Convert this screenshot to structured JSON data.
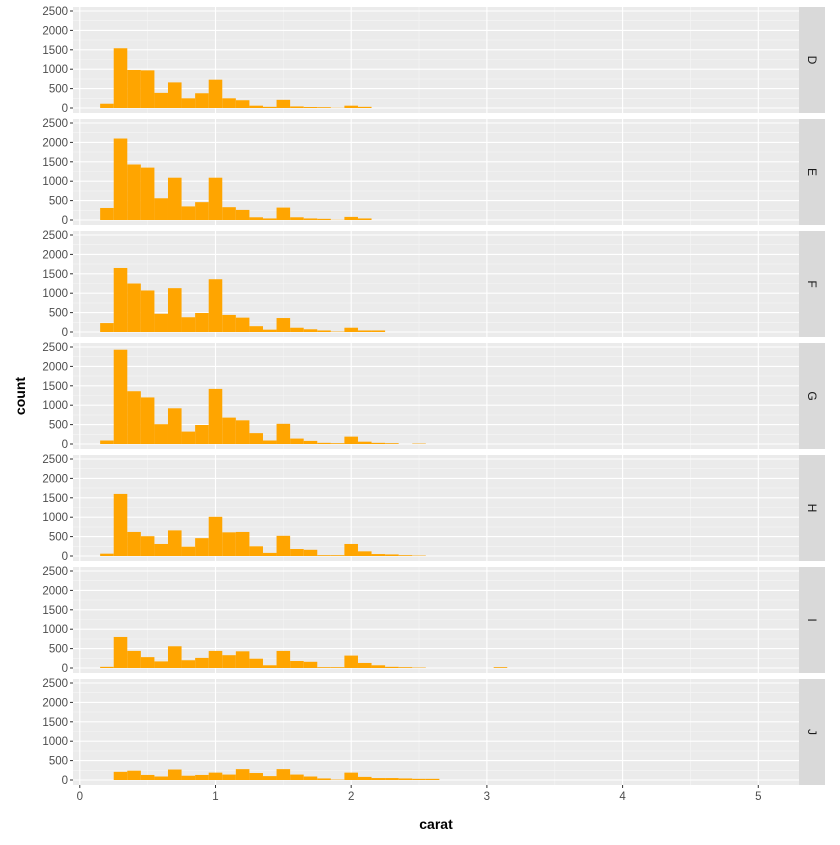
{
  "chart_data": {
    "type": "bar",
    "subtype": "faceted-histogram",
    "xlabel": "carat",
    "ylabel": "count",
    "xlim": [
      -0.05,
      5.3
    ],
    "ylim": [
      0,
      2500
    ],
    "x_ticks": [
      0,
      1,
      2,
      3,
      4,
      5
    ],
    "x_tick_labels": [
      "0",
      "1",
      "2",
      "3",
      "4",
      "5"
    ],
    "y_ticks": [
      0,
      500,
      1000,
      1500,
      2000,
      2500
    ],
    "y_tick_labels": [
      "0",
      "500",
      "1000",
      "1500",
      "2000",
      "2500"
    ],
    "bin_starts": [
      0.15,
      0.25,
      0.35,
      0.45,
      0.55,
      0.65,
      0.75,
      0.85,
      0.95,
      1.05,
      1.15,
      1.25,
      1.35,
      1.45,
      1.55,
      1.65,
      1.75,
      1.85,
      1.95,
      2.05,
      2.15,
      2.25,
      2.35,
      2.45,
      2.55,
      2.65,
      2.75,
      2.85,
      2.95,
      3.05
    ],
    "bin_width": 0.1,
    "bar_color": "#FFA500",
    "panel_bg": "#EBEBEB",
    "strip_bg": "#D9D9D9",
    "grid": true,
    "facets": [
      {
        "label": "D",
        "values": [
          110,
          1540,
          980,
          970,
          390,
          660,
          250,
          380,
          730,
          250,
          200,
          60,
          30,
          210,
          40,
          25,
          20,
          5,
          60,
          30,
          0,
          0,
          0,
          0,
          0,
          0,
          0,
          0,
          0,
          0
        ]
      },
      {
        "label": "E",
        "values": [
          310,
          2100,
          1430,
          1350,
          560,
          1090,
          350,
          460,
          1090,
          330,
          260,
          70,
          40,
          320,
          70,
          40,
          30,
          5,
          80,
          40,
          0,
          0,
          0,
          0,
          0,
          0,
          0,
          0,
          0,
          0
        ]
      },
      {
        "label": "F",
        "values": [
          230,
          1650,
          1250,
          1070,
          470,
          1130,
          380,
          490,
          1360,
          440,
          370,
          150,
          60,
          360,
          110,
          70,
          40,
          10,
          110,
          40,
          40,
          0,
          0,
          0,
          0,
          0,
          0,
          0,
          0,
          0
        ]
      },
      {
        "label": "G",
        "values": [
          90,
          2430,
          1360,
          1200,
          510,
          920,
          320,
          490,
          1420,
          680,
          610,
          280,
          90,
          520,
          140,
          80,
          30,
          20,
          190,
          60,
          30,
          20,
          0,
          10,
          0,
          0,
          0,
          0,
          0,
          0
        ]
      },
      {
        "label": "H",
        "values": [
          60,
          1600,
          620,
          510,
          310,
          660,
          240,
          460,
          1010,
          610,
          620,
          250,
          80,
          520,
          180,
          160,
          20,
          20,
          310,
          120,
          50,
          40,
          20,
          10,
          0,
          0,
          0,
          0,
          0,
          0
        ]
      },
      {
        "label": "I",
        "values": [
          30,
          800,
          440,
          280,
          170,
          560,
          200,
          260,
          440,
          330,
          430,
          240,
          70,
          440,
          180,
          160,
          20,
          20,
          320,
          130,
          70,
          30,
          20,
          10,
          0,
          0,
          0,
          0,
          0,
          20
        ]
      },
      {
        "label": "J",
        "values": [
          0,
          210,
          240,
          130,
          90,
          270,
          110,
          130,
          190,
          140,
          280,
          180,
          100,
          280,
          140,
          90,
          40,
          10,
          190,
          80,
          50,
          50,
          40,
          30,
          30,
          0,
          0,
          0,
          0,
          0
        ]
      }
    ]
  }
}
